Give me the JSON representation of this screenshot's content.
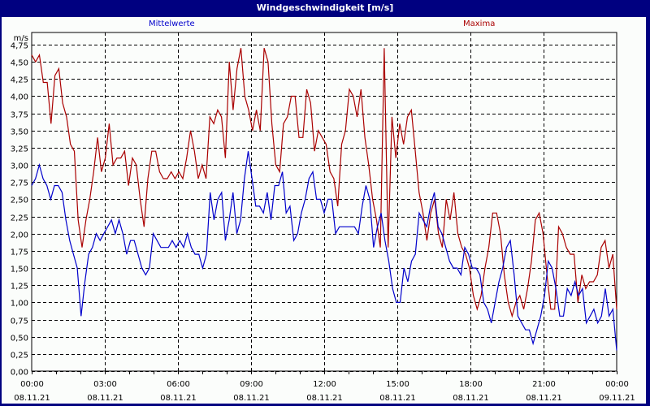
{
  "window": {
    "title": "Windgeschwindigkeit [m/s]"
  },
  "legend": {
    "mean_label": "Mittelwerte",
    "max_label": "Maxima"
  },
  "colors": {
    "frame": "#000080",
    "background": "#fbfdfb",
    "mean": "#0000cc",
    "max": "#aa0000",
    "grid": "#000000"
  },
  "chart_data": {
    "type": "line",
    "title": "Windgeschwindigkeit [m/s]",
    "ylabel": "m/s",
    "xlabel": "",
    "ylim": [
      0,
      4.75
    ],
    "yticks": [
      "0,00",
      "0,25",
      "0,50",
      "0,75",
      "1,00",
      "1,25",
      "1,50",
      "1,75",
      "2,00",
      "2,25",
      "2,50",
      "2,75",
      "3,00",
      "3,25",
      "3,50",
      "3,75",
      "4,00",
      "4,25",
      "4,50",
      "4,75"
    ],
    "xticks": [
      {
        "time": "00:00",
        "date": "08.11.21"
      },
      {
        "time": "03:00",
        "date": "08.11.21"
      },
      {
        "time": "06:00",
        "date": "08.11.21"
      },
      {
        "time": "09:00",
        "date": "08.11.21"
      },
      {
        "time": "12:00",
        "date": "08.11.21"
      },
      {
        "time": "15:00",
        "date": "08.11.21"
      },
      {
        "time": "18:00",
        "date": "08.11.21"
      },
      {
        "time": "21:00",
        "date": "08.11.21"
      },
      {
        "time": "00:00",
        "date": "09.11.21"
      }
    ],
    "grid": true,
    "legend_position": "top",
    "x_interval_minutes": 10,
    "series": [
      {
        "name": "Mittelwerte",
        "color": "#0000cc",
        "values": [
          2.7,
          2.8,
          3.0,
          2.8,
          2.7,
          2.5,
          2.7,
          2.7,
          2.6,
          2.2,
          1.9,
          1.7,
          1.5,
          0.8,
          1.3,
          1.7,
          1.8,
          2.0,
          1.9,
          2.0,
          2.1,
          2.2,
          2.0,
          2.2,
          2.0,
          1.7,
          1.9,
          1.9,
          1.7,
          1.5,
          1.4,
          1.5,
          2.0,
          1.9,
          1.8,
          1.8,
          1.8,
          1.9,
          1.8,
          1.9,
          1.8,
          2.0,
          1.8,
          1.7,
          1.7,
          1.5,
          1.7,
          2.6,
          2.2,
          2.5,
          2.6,
          1.9,
          2.2,
          2.6,
          2.0,
          2.2,
          2.8,
          3.2,
          2.8,
          2.4,
          2.4,
          2.3,
          2.6,
          2.2,
          2.7,
          2.7,
          2.9,
          2.3,
          2.4,
          1.9,
          2.0,
          2.3,
          2.5,
          2.8,
          2.9,
          2.5,
          2.5,
          2.3,
          2.5,
          2.5,
          2.0,
          2.1,
          2.1,
          2.1,
          2.1,
          2.1,
          2.0,
          2.4,
          2.7,
          2.5,
          1.8,
          2.1,
          2.3,
          1.9,
          1.6,
          1.2,
          1.0,
          1.0,
          1.5,
          1.3,
          1.6,
          1.7,
          2.3,
          2.2,
          2.1,
          2.4,
          2.6,
          2.1,
          2.0,
          1.8,
          1.6,
          1.5,
          1.5,
          1.4,
          1.8,
          1.7,
          1.5,
          1.5,
          1.4,
          1.0,
          0.9,
          0.7,
          1.0,
          1.3,
          1.5,
          1.8,
          1.9,
          1.4,
          0.8,
          0.7,
          0.6,
          0.6,
          0.4,
          0.6,
          0.8,
          1.1,
          1.6,
          1.5,
          1.2,
          0.8,
          0.8,
          1.2,
          1.1,
          1.3,
          1.1,
          1.2,
          0.7,
          0.8,
          0.9,
          0.7,
          0.8,
          1.2,
          0.8,
          0.9,
          0.3
        ]
      },
      {
        "name": "Maxima",
        "color": "#aa0000",
        "values": [
          4.6,
          4.5,
          4.6,
          4.2,
          4.2,
          3.6,
          4.3,
          4.4,
          3.9,
          3.7,
          3.3,
          3.2,
          2.2,
          1.8,
          2.2,
          2.5,
          2.9,
          3.4,
          2.9,
          3.1,
          3.6,
          3.0,
          3.1,
          3.1,
          3.2,
          2.7,
          3.1,
          3.0,
          2.5,
          2.1,
          2.8,
          3.2,
          3.2,
          2.9,
          2.8,
          2.8,
          2.9,
          2.8,
          2.9,
          2.8,
          3.1,
          3.5,
          3.2,
          2.8,
          3.0,
          2.8,
          3.7,
          3.6,
          3.8,
          3.7,
          3.1,
          4.5,
          3.8,
          4.4,
          4.7,
          4.0,
          3.8,
          3.5,
          3.8,
          3.5,
          4.7,
          4.5,
          3.6,
          3.0,
          2.9,
          3.6,
          3.7,
          4.0,
          4.0,
          3.4,
          3.4,
          4.1,
          3.9,
          3.2,
          3.5,
          3.4,
          3.3,
          2.9,
          2.8,
          2.4,
          3.3,
          3.5,
          4.1,
          4.0,
          3.7,
          4.1,
          3.4,
          3.0,
          2.5,
          2.2,
          1.8,
          4.7,
          1.8,
          3.7,
          3.1,
          3.6,
          3.3,
          3.7,
          3.8,
          3.2,
          2.6,
          2.3,
          1.9,
          2.3,
          2.5,
          2.0,
          1.8,
          2.5,
          2.2,
          2.6,
          2.0,
          1.8,
          1.7,
          1.5,
          1.1,
          0.9,
          1.1,
          1.5,
          1.8,
          2.3,
          2.3,
          2.0,
          1.4,
          1.0,
          0.8,
          1.0,
          1.1,
          0.9,
          1.2,
          1.6,
          2.2,
          2.3,
          2.0,
          1.4,
          0.9,
          0.9,
          2.1,
          2.0,
          1.8,
          1.7,
          1.7,
          1.0,
          1.4,
          1.2,
          1.3,
          1.3,
          1.4,
          1.8,
          1.9,
          1.5,
          1.7,
          0.9
        ]
      }
    ]
  }
}
